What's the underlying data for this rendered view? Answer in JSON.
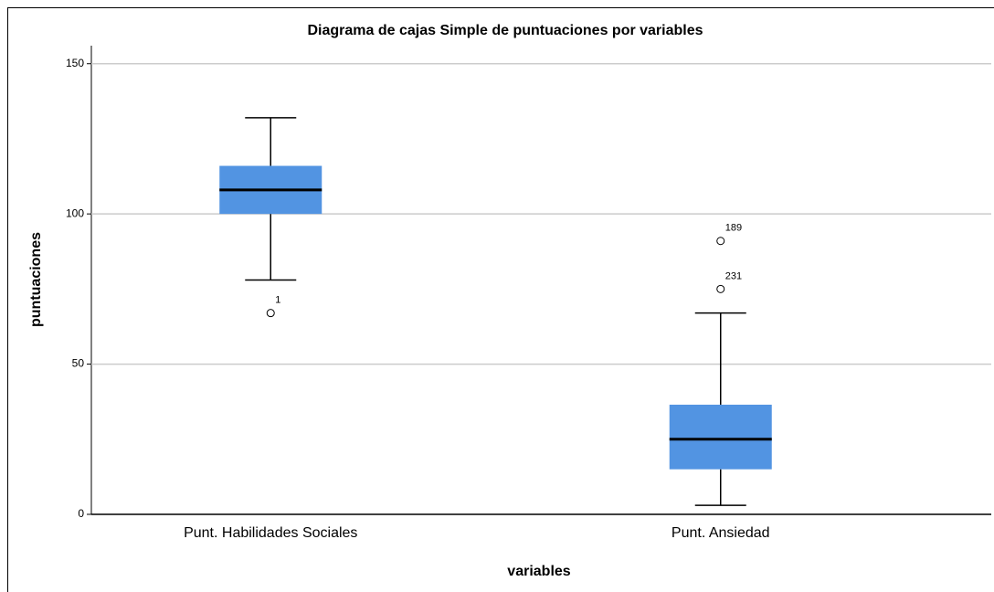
{
  "chart_data": {
    "type": "box",
    "title": "Diagrama de cajas Simple de puntuaciones por variables",
    "x_label": "variables",
    "y_label": "puntuaciones",
    "categories": [
      "Punt. Habilidades Sociales",
      "Punt. Ansiedad"
    ],
    "whisker_low": [
      78,
      3
    ],
    "q1": [
      100,
      15
    ],
    "median": [
      108,
      25
    ],
    "q3": [
      116,
      36.5
    ],
    "whisker_high": [
      132,
      67
    ],
    "outliers": [
      [
        {
          "value": 67,
          "label": "1"
        }
      ],
      [
        {
          "value": 91,
          "label": "189"
        },
        {
          "value": 75,
          "label": "231"
        }
      ]
    ],
    "color": "#5294e2",
    "ylim": [
      0,
      156
    ],
    "yticks": [
      0,
      50,
      100,
      150
    ],
    "grid": true
  }
}
